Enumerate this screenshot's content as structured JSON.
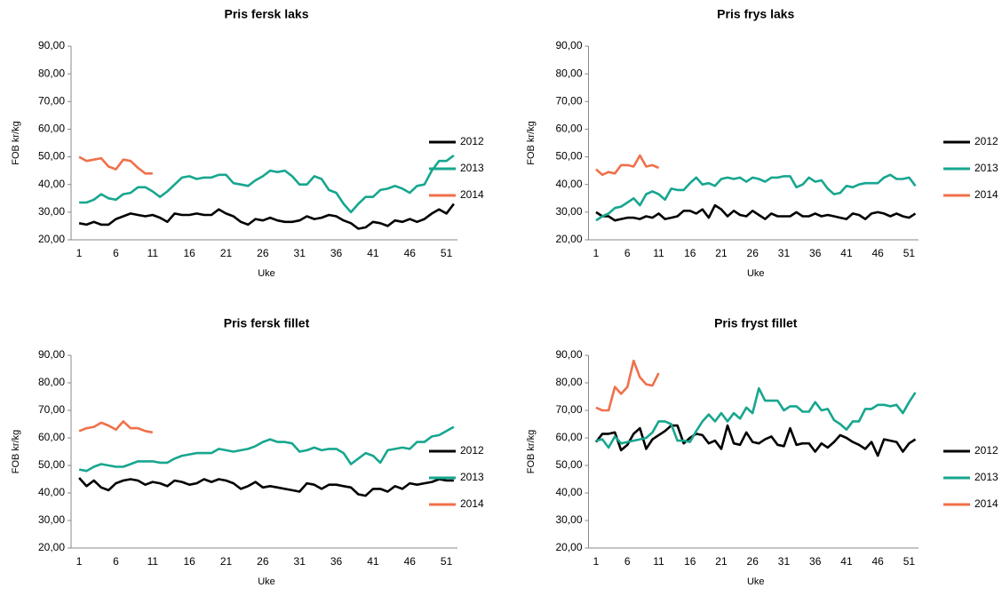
{
  "chart_data": [
    {
      "type": "line",
      "title": "Pris fersk laks",
      "x_label": "Uke",
      "y_label": "FOB kr/kg",
      "x": [
        1,
        2,
        3,
        4,
        5,
        6,
        7,
        8,
        9,
        10,
        11,
        12,
        13,
        14,
        15,
        16,
        17,
        18,
        19,
        20,
        21,
        22,
        23,
        24,
        25,
        26,
        27,
        28,
        29,
        30,
        31,
        32,
        33,
        34,
        35,
        36,
        37,
        38,
        39,
        40,
        41,
        42,
        43,
        44,
        45,
        46,
        47,
        48,
        49,
        50,
        51,
        52
      ],
      "xlim": [
        0.5,
        52.5
      ],
      "xticks": [
        1,
        6,
        11,
        16,
        21,
        26,
        31,
        36,
        41,
        46,
        51
      ],
      "ylim": [
        20,
        90
      ],
      "yticks": [
        {
          "value": 20,
          "label": "20,00"
        },
        {
          "value": 30,
          "label": "30,00"
        },
        {
          "value": 40,
          "label": "40,00"
        },
        {
          "value": 50,
          "label": "50,00"
        },
        {
          "value": 60,
          "label": "60,00"
        },
        {
          "value": 70,
          "label": "70,00"
        },
        {
          "value": 80,
          "label": "80,00"
        },
        {
          "value": 90,
          "label": "90,00"
        }
      ],
      "series": [
        {
          "name": "2012",
          "color": "#000000",
          "values": [
            26,
            25.5,
            26.5,
            25.5,
            25.5,
            27.5,
            28.5,
            29.5,
            29,
            28.5,
            29,
            28,
            26.5,
            29.5,
            29,
            29,
            29.5,
            29,
            29,
            31,
            29.5,
            28.5,
            26.5,
            25.5,
            27.5,
            27,
            28,
            27,
            26.5,
            26.5,
            27,
            28.5,
            27.5,
            28,
            29,
            28.5,
            27,
            26,
            24,
            24.5,
            26.5,
            26,
            25,
            27,
            26.5,
            27.5,
            26.5,
            27.5,
            29.5,
            31,
            29.5,
            33
          ]
        },
        {
          "name": "2013",
          "color": "#17a68f",
          "values": [
            33.5,
            33.5,
            34.5,
            36.5,
            35,
            34.5,
            36.5,
            37,
            39,
            39,
            37.5,
            35.5,
            37.5,
            40,
            42.5,
            43,
            42,
            42.5,
            42.5,
            43.5,
            43.5,
            40.5,
            40,
            39.5,
            41.5,
            43,
            45,
            44.5,
            45,
            43,
            40,
            40,
            43,
            42,
            38,
            37,
            33,
            30,
            33,
            35.5,
            35.5,
            38,
            38.5,
            39.5,
            38.5,
            37,
            39.5,
            40,
            45,
            48.5,
            48.5,
            50.5
          ]
        },
        {
          "name": "2014",
          "color": "#f0704a",
          "values": [
            50,
            48.5,
            49,
            49.5,
            46.5,
            45.5,
            49,
            48.5,
            46,
            44,
            44,
            null,
            null,
            null,
            null,
            null,
            null,
            null,
            null,
            null,
            null,
            null,
            null,
            null,
            null,
            null,
            null,
            null,
            null,
            null,
            null,
            null,
            null,
            null,
            null,
            null,
            null,
            null,
            null,
            null,
            null,
            null,
            null,
            null,
            null,
            null,
            null,
            null,
            null,
            null,
            null,
            null
          ]
        }
      ]
    },
    {
      "type": "line",
      "title": "Pris frys laks",
      "x_label": "Uke",
      "y_label": "FOB kr/kg",
      "x": [
        1,
        2,
        3,
        4,
        5,
        6,
        7,
        8,
        9,
        10,
        11,
        12,
        13,
        14,
        15,
        16,
        17,
        18,
        19,
        20,
        21,
        22,
        23,
        24,
        25,
        26,
        27,
        28,
        29,
        30,
        31,
        32,
        33,
        34,
        35,
        36,
        37,
        38,
        39,
        40,
        41,
        42,
        43,
        44,
        45,
        46,
        47,
        48,
        49,
        50,
        51,
        52
      ],
      "xlim": [
        0.5,
        52.5
      ],
      "xticks": [
        1,
        6,
        11,
        16,
        21,
        26,
        31,
        36,
        41,
        46,
        51
      ],
      "ylim": [
        20,
        90
      ],
      "yticks": [
        {
          "value": 20,
          "label": "20,00"
        },
        {
          "value": 30,
          "label": "30,00"
        },
        {
          "value": 40,
          "label": "40,00"
        },
        {
          "value": 50,
          "label": "50,00"
        },
        {
          "value": 60,
          "label": "60,00"
        },
        {
          "value": 70,
          "label": "70,00"
        },
        {
          "value": 80,
          "label": "80,00"
        },
        {
          "value": 90,
          "label": "90,00"
        }
      ],
      "series": [
        {
          "name": "2012",
          "color": "#000000",
          "values": [
            30,
            28.5,
            28.5,
            27,
            27.5,
            28,
            28,
            27.5,
            28.5,
            28,
            29.5,
            27.5,
            28,
            28.5,
            30.5,
            30.5,
            29.5,
            31,
            28,
            32.5,
            31,
            28.5,
            30.5,
            29,
            28.5,
            30.5,
            29,
            27.5,
            29.5,
            28.5,
            28.5,
            28.5,
            30,
            28.5,
            28.5,
            29.5,
            28.5,
            29,
            28.5,
            28,
            27.5,
            29.5,
            29,
            27.5,
            29.5,
            30,
            29.5,
            28.5,
            29.5,
            28.5,
            28,
            29.5
          ]
        },
        {
          "name": "2013",
          "color": "#17a68f",
          "values": [
            27,
            28.5,
            29.5,
            31.5,
            32,
            33.5,
            35,
            32.5,
            36.5,
            37.5,
            36.5,
            34.5,
            38.5,
            38,
            38,
            40.5,
            42.5,
            40,
            40.5,
            39.5,
            42,
            42.5,
            42,
            42.5,
            41,
            42.5,
            42,
            41,
            42.5,
            42.5,
            43,
            43,
            39,
            40,
            42.5,
            41,
            41.5,
            38.5,
            36.5,
            37,
            39.5,
            39,
            40,
            40.5,
            40.5,
            40.5,
            42.5,
            43.5,
            42,
            42,
            42.5,
            39.5
          ]
        },
        {
          "name": "2014",
          "color": "#f0704a",
          "values": [
            45.5,
            43.5,
            44.5,
            44,
            47,
            47,
            46.5,
            50.5,
            46.5,
            47,
            46,
            null,
            null,
            null,
            null,
            null,
            null,
            null,
            null,
            null,
            null,
            null,
            null,
            null,
            null,
            null,
            null,
            null,
            null,
            null,
            null,
            null,
            null,
            null,
            null,
            null,
            null,
            null,
            null,
            null,
            null,
            null,
            null,
            null,
            null,
            null,
            null,
            null,
            null,
            null,
            null,
            null
          ]
        }
      ]
    },
    {
      "type": "line",
      "title": "Pris fersk fillet",
      "x_label": "Uke",
      "y_label": "FOB kr/kg",
      "x": [
        1,
        2,
        3,
        4,
        5,
        6,
        7,
        8,
        9,
        10,
        11,
        12,
        13,
        14,
        15,
        16,
        17,
        18,
        19,
        20,
        21,
        22,
        23,
        24,
        25,
        26,
        27,
        28,
        29,
        30,
        31,
        32,
        33,
        34,
        35,
        36,
        37,
        38,
        39,
        40,
        41,
        42,
        43,
        44,
        45,
        46,
        47,
        48,
        49,
        50,
        51,
        52
      ],
      "xlim": [
        0.5,
        52.5
      ],
      "xticks": [
        1,
        6,
        11,
        16,
        21,
        26,
        31,
        36,
        41,
        46,
        51
      ],
      "ylim": [
        20,
        90
      ],
      "yticks": [
        {
          "value": 20,
          "label": "20,00"
        },
        {
          "value": 30,
          "label": "30,00"
        },
        {
          "value": 40,
          "label": "40,00"
        },
        {
          "value": 50,
          "label": "50,00"
        },
        {
          "value": 60,
          "label": "60,00"
        },
        {
          "value": 70,
          "label": "70,00"
        },
        {
          "value": 80,
          "label": "80,00"
        },
        {
          "value": 90,
          "label": "90,00"
        }
      ],
      "series": [
        {
          "name": "2012",
          "color": "#000000",
          "values": [
            45.5,
            42.5,
            44.5,
            42,
            41,
            43.5,
            44.5,
            45,
            44.5,
            43,
            44,
            43.5,
            42.5,
            44.5,
            44,
            43,
            43.5,
            45,
            44,
            45,
            44.5,
            43.5,
            41.5,
            42.5,
            44,
            42,
            42.5,
            42,
            41.5,
            41,
            40.5,
            43.5,
            43,
            41.5,
            43,
            43,
            42.5,
            42,
            39.5,
            39,
            41.5,
            41.5,
            40.5,
            42.5,
            41.5,
            43.5,
            43,
            43.5,
            44,
            45,
            44.5,
            44.5
          ]
        },
        {
          "name": "2013",
          "color": "#17a68f",
          "values": [
            48.5,
            48,
            49.5,
            50.5,
            50,
            49.5,
            49.5,
            50.5,
            51.5,
            51.5,
            51.5,
            51,
            51,
            52.5,
            53.5,
            54,
            54.5,
            54.5,
            54.5,
            56,
            55.5,
            55,
            55.5,
            56,
            57,
            58.5,
            59.5,
            58.5,
            58.5,
            58,
            55,
            55.5,
            56.5,
            55.5,
            56,
            56,
            54.5,
            50.5,
            52.5,
            54.5,
            53.5,
            51,
            55.5,
            56,
            56.5,
            56,
            58.5,
            58.5,
            60.5,
            61,
            62.5,
            64
          ]
        },
        {
          "name": "2014",
          "color": "#f0704a",
          "values": [
            62.5,
            63.5,
            64,
            65.5,
            64.5,
            63,
            66,
            63.5,
            63.5,
            62.5,
            62,
            null,
            null,
            null,
            null,
            null,
            null,
            null,
            null,
            null,
            null,
            null,
            null,
            null,
            null,
            null,
            null,
            null,
            null,
            null,
            null,
            null,
            null,
            null,
            null,
            null,
            null,
            null,
            null,
            null,
            null,
            null,
            null,
            null,
            null,
            null,
            null,
            null,
            null,
            null,
            null,
            null
          ]
        }
      ]
    },
    {
      "type": "line",
      "title": "Pris fryst fillet",
      "x_label": "Uke",
      "y_label": "FOB kr/kg",
      "x": [
        1,
        2,
        3,
        4,
        5,
        6,
        7,
        8,
        9,
        10,
        11,
        12,
        13,
        14,
        15,
        16,
        17,
        18,
        19,
        20,
        21,
        22,
        23,
        24,
        25,
        26,
        27,
        28,
        29,
        30,
        31,
        32,
        33,
        34,
        35,
        36,
        37,
        38,
        39,
        40,
        41,
        42,
        43,
        44,
        45,
        46,
        47,
        48,
        49,
        50,
        51,
        52
      ],
      "xlim": [
        0.5,
        52.5
      ],
      "xticks": [
        1,
        6,
        11,
        16,
        21,
        26,
        31,
        36,
        41,
        46,
        51
      ],
      "ylim": [
        20,
        90
      ],
      "yticks": [
        {
          "value": 20,
          "label": "20,00"
        },
        {
          "value": 30,
          "label": "30,00"
        },
        {
          "value": 40,
          "label": "40,00"
        },
        {
          "value": 50,
          "label": "50,00"
        },
        {
          "value": 60,
          "label": "60,00"
        },
        {
          "value": 70,
          "label": "70,00"
        },
        {
          "value": 80,
          "label": "80,00"
        },
        {
          "value": 90,
          "label": "90,00"
        }
      ],
      "series": [
        {
          "name": "2012",
          "color": "#000000",
          "values": [
            58.5,
            61.5,
            61.5,
            62,
            55.5,
            57.5,
            61.5,
            63.5,
            56,
            59.5,
            61,
            62.5,
            64.5,
            64.5,
            58,
            60,
            61.5,
            61,
            58,
            59,
            56,
            64.5,
            58,
            57.5,
            62,
            58.5,
            58,
            59.5,
            60.5,
            57.5,
            57,
            63.5,
            57.5,
            58,
            58,
            55,
            58,
            56.5,
            58.5,
            61,
            60,
            58.5,
            57.5,
            56,
            58.5,
            53.5,
            59.5,
            59,
            58.5,
            55,
            58,
            59.5
          ]
        },
        {
          "name": "2013",
          "color": "#17a68f",
          "values": [
            59,
            59.5,
            56.5,
            60.5,
            58,
            58.5,
            59,
            59.5,
            60,
            62,
            66,
            66,
            65,
            59,
            59,
            58.5,
            62.5,
            66,
            68.5,
            66,
            69,
            66,
            69,
            67,
            71,
            69,
            78,
            73.5,
            73.5,
            73.5,
            70,
            71.5,
            71.5,
            69.5,
            69.5,
            73,
            70,
            70.5,
            66.5,
            65,
            63,
            66,
            66,
            70.5,
            70.5,
            72,
            72,
            71.5,
            72,
            69,
            73,
            76.5
          ]
        },
        {
          "name": "2014",
          "color": "#f0704a",
          "values": [
            71,
            70,
            70,
            78.5,
            76,
            78.5,
            88,
            82,
            79.5,
            79,
            83.5,
            null,
            null,
            null,
            null,
            null,
            null,
            null,
            null,
            null,
            null,
            null,
            null,
            null,
            null,
            null,
            null,
            null,
            null,
            null,
            null,
            null,
            null,
            null,
            null,
            null,
            null,
            null,
            null,
            null,
            null,
            null,
            null,
            null,
            null,
            null,
            null,
            null,
            null,
            null,
            null,
            null
          ]
        }
      ]
    }
  ]
}
